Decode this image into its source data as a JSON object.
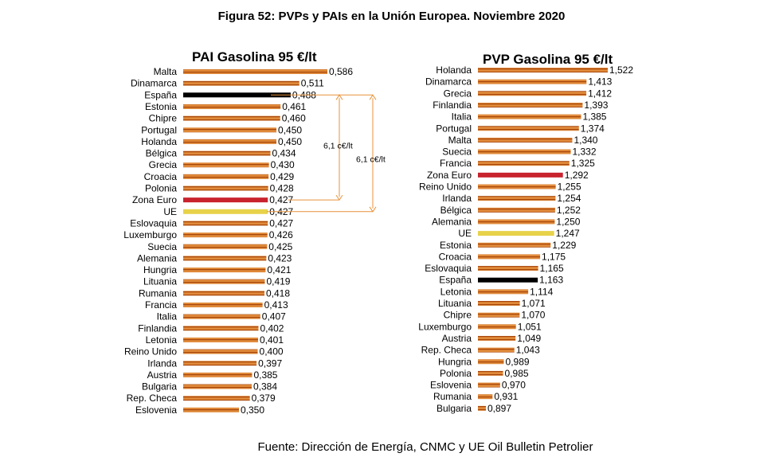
{
  "figure_title": "Figura 52: PVPs y PAIs en la Unión Europea. Noviembre 2020",
  "source": "Fuente: Dirección de Energía, CNMC y UE Oil Bulletin Petrolier",
  "colors": {
    "default_bar": "#d9741c",
    "default_bar_stripe": "#b04a08",
    "espana": "#000000",
    "zona_euro": "#c8232e",
    "ue": "#e7d24a",
    "arrow": "#e8923a"
  },
  "chart_data": [
    {
      "type": "bar",
      "orientation": "horizontal",
      "title": "PAI Gasolina 95 €/lt",
      "categories": [
        "Malta",
        "Dinamarca",
        "España",
        "Estonia",
        "Chipre",
        "Portugal",
        "Holanda",
        "Bélgica",
        "Grecia",
        "Croacia",
        "Polonia",
        "Zona Euro",
        "UE",
        "Eslovaquia",
        "Luxemburgo",
        "Suecia",
        "Alemania",
        "Hungria",
        "Lituania",
        "Rumania",
        "Francia",
        "Italia",
        "Finlandia",
        "Letonia",
        "Reino Unido",
        "Irlanda",
        "Austria",
        "Bulgaria",
        "Rep. Checa",
        "Eslovenia"
      ],
      "values": [
        0.586,
        0.511,
        0.488,
        0.461,
        0.46,
        0.45,
        0.45,
        0.434,
        0.43,
        0.429,
        0.428,
        0.427,
        0.427,
        0.427,
        0.426,
        0.425,
        0.423,
        0.421,
        0.419,
        0.418,
        0.413,
        0.407,
        0.402,
        0.401,
        0.4,
        0.397,
        0.385,
        0.384,
        0.379,
        0.35
      ],
      "labels": [
        "0,586",
        "0,511",
        "0,488",
        "0,461",
        "0,460",
        "0,450",
        "0,450",
        "0,434",
        "0,430",
        "0,429",
        "0,428",
        "0,427",
        "0,427",
        "0,427",
        "0,426",
        "0,425",
        "0,423",
        "0,421",
        "0,419",
        "0,418",
        "0,413",
        "0,407",
        "0,402",
        "0,401",
        "0,400",
        "0,397",
        "0,385",
        "0,384",
        "0,379",
        "0,350"
      ],
      "highlights": {
        "España": "espana",
        "Zona Euro": "zona_euro",
        "UE": "ue"
      },
      "annotations": [
        {
          "text": "6,1 c€/lt",
          "from": "España",
          "to": "Zona Euro"
        },
        {
          "text": "6,1 c€/lt",
          "from": "España",
          "to": "UE"
        }
      ]
    },
    {
      "type": "bar",
      "orientation": "horizontal",
      "title": "PVP Gasolina 95 €/lt",
      "categories": [
        "Holanda",
        "Dinamarca",
        "Grecia",
        "Finlandia",
        "Italia",
        "Portugal",
        "Malta",
        "Suecia",
        "Francia",
        "Zona Euro",
        "Reino Unido",
        "Irlanda",
        "Bélgica",
        "Alemania",
        "UE",
        "Estonia",
        "Croacia",
        "Eslovaquia",
        "España",
        "Letonia",
        "Lituania",
        "Chipre",
        "Luxemburgo",
        "Austria",
        "Rep. Checa",
        "Hungria",
        "Polonia",
        "Eslovenia",
        "Rumania",
        "Bulgaria"
      ],
      "values": [
        1.522,
        1.413,
        1.412,
        1.393,
        1.385,
        1.374,
        1.34,
        1.332,
        1.325,
        1.292,
        1.255,
        1.254,
        1.252,
        1.25,
        1.247,
        1.229,
        1.175,
        1.165,
        1.163,
        1.114,
        1.071,
        1.07,
        1.051,
        1.049,
        1.043,
        0.989,
        0.985,
        0.97,
        0.931,
        0.897
      ],
      "labels": [
        "1,522",
        "1,413",
        "1,412",
        "1,393",
        "1,385",
        "1,374",
        "1,340",
        "1,332",
        "1,325",
        "1,292",
        "1,255",
        "1,254",
        "1,252",
        "1,250",
        "1,247",
        "1,229",
        "1,175",
        "1,165",
        "1,163",
        "1,114",
        "1,071",
        "1,070",
        "1,051",
        "1,049",
        "1,043",
        "0,989",
        "0,985",
        "0,970",
        "0,931",
        "0,897"
      ],
      "highlights": {
        "España": "espana",
        "Zona Euro": "zona_euro",
        "UE": "ue"
      },
      "annotations": []
    }
  ]
}
